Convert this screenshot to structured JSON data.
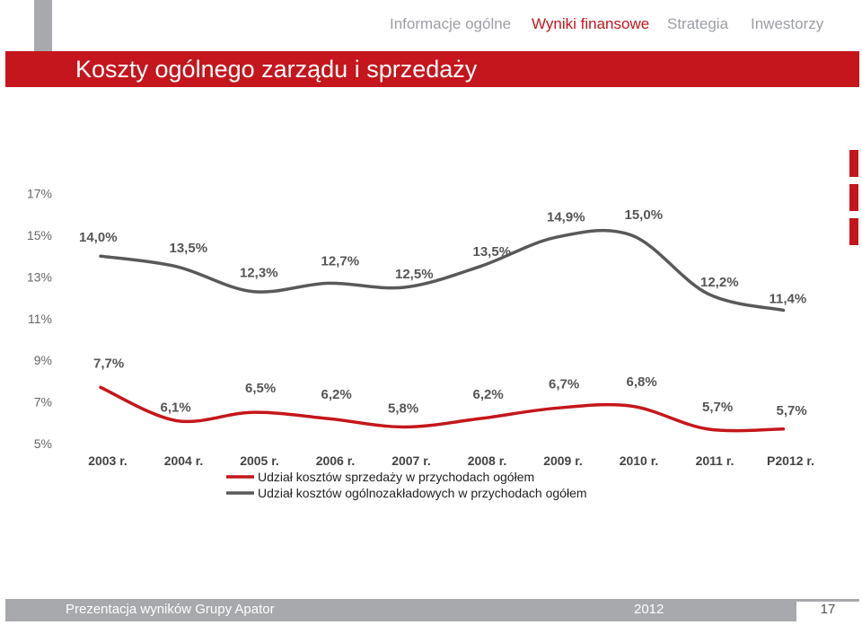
{
  "nav": {
    "items": [
      "Informacje ogólne",
      "Wyniki finansowe",
      "Strategia",
      "Inwestorzy"
    ],
    "active_index": 1
  },
  "page_title": "Koszty ogólnego zarządu i sprzedaży",
  "chart_data": {
    "type": "line",
    "categories": [
      "2003 r.",
      "2004 r.",
      "2005 r.",
      "2006 r.",
      "2007 r.",
      "2008 r.",
      "2009 r.",
      "2010 r.",
      "2011 r.",
      "P2012 r."
    ],
    "series": [
      {
        "name": "Udział kosztów sprzedaży w przychodach ogółem",
        "values": [
          7.7,
          6.1,
          6.5,
          6.2,
          5.8,
          6.2,
          6.7,
          6.8,
          5.7,
          5.7
        ],
        "labels": [
          "7,7%",
          "6,1%",
          "6,5%",
          "6,2%",
          "5,8%",
          "6,2%",
          "6,7%",
          "6,8%",
          "5,7%",
          "5,7%"
        ],
        "color": "#c4161c"
      },
      {
        "name": "Udział kosztów ogólnozakładowych w przychodach ogółem",
        "values": [
          14.0,
          13.5,
          12.3,
          12.7,
          12.5,
          13.5,
          14.9,
          15.0,
          12.2,
          11.4
        ],
        "labels": [
          "14,0%",
          "13,5%",
          "12,3%",
          "12,7%",
          "12,5%",
          "13,5%",
          "14,9%",
          "15,0%",
          "12,2%",
          "11,4%"
        ],
        "color": "#58595b"
      }
    ],
    "y_ticks": [
      "5%",
      "7%",
      "9%",
      "11%",
      "13%",
      "15%",
      "17%"
    ],
    "ylim": [
      5,
      17
    ],
    "legend_position": "bottom"
  },
  "footer": {
    "left_text": "Prezentacja wyników Grupy Apator",
    "year": "2012",
    "page_number": "17"
  }
}
